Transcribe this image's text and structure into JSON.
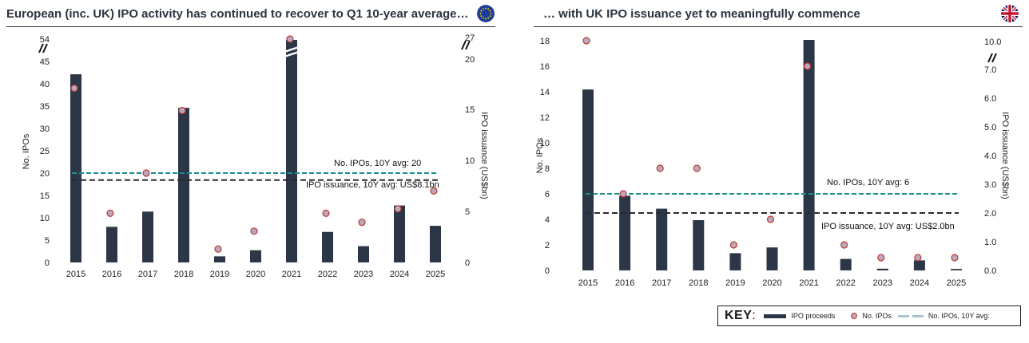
{
  "colors": {
    "bar": "#2b3647",
    "dot_fill": "#b7a9bf",
    "dot_stroke": "#c0392b",
    "ipo_avg_line": "#1a8f8f",
    "issuance_avg_line": "#2b2b2b",
    "title": "#2b3440"
  },
  "left_panel": {
    "title": "European (inc. UK) IPO activity has continued to recover to Q1 10-year average…",
    "flag_icon": "eu-flag-icon"
  },
  "right_panel": {
    "title": "… with UK IPO issuance yet to meaningfully commence",
    "flag_icon": "uk-flag-icon"
  },
  "key": {
    "title": "KEY",
    "colon": ":",
    "items": [
      "IPO proceeds",
      "No. IPOs",
      "No. IPOs, 10Y avg:"
    ]
  },
  "chart_data": [
    {
      "type": "bar",
      "title": "European (inc. UK) IPO activity has continued to recover to Q1 10-year average…",
      "categories": [
        "2015",
        "2016",
        "2017",
        "2018",
        "2019",
        "2020",
        "2021",
        "2022",
        "2023",
        "2024",
        "2025"
      ],
      "ylabel": "No. IPOs",
      "y2label": "IPO issuance (US$bn)",
      "left_ticks": [
        "0",
        "5",
        "10",
        "15",
        "20",
        "25",
        "30",
        "35",
        "40",
        "45",
        "54"
      ],
      "right_ticks": [
        "0",
        "5",
        "10",
        "15",
        "20",
        "27"
      ],
      "series": [
        {
          "name": "IPO proceeds",
          "axis": "right",
          "kind": "bar",
          "values": [
            18.5,
            3.5,
            5.0,
            15.2,
            0.6,
            1.2,
            27,
            3.0,
            1.6,
            5.6,
            3.6
          ]
        },
        {
          "name": "No. IPOs",
          "axis": "left",
          "kind": "dot",
          "values": [
            39,
            11,
            20,
            34,
            3,
            7,
            54,
            11,
            9,
            12,
            16
          ]
        }
      ],
      "avg_ipos": 20,
      "avg_issuance": 8.1,
      "annotations": [
        "No. IPOs, 10Y avg: 20",
        "IPO issuance, 10Y avg: US$8.1bn"
      ]
    },
    {
      "type": "bar",
      "title": "… with UK IPO issuance yet to meaningfully commence",
      "categories": [
        "2015",
        "2016",
        "2017",
        "2018",
        "2019",
        "2020",
        "2021",
        "2022",
        "2023",
        "2024",
        "2025"
      ],
      "ylabel": "No. IPOs",
      "y2label": "IPO issuance (US$bn)",
      "left_ticks": [
        "0",
        "2",
        "4",
        "6",
        "8",
        "10",
        "12",
        "14",
        "16",
        "18"
      ],
      "right_ticks": [
        "0.0",
        "1.0",
        "2.0",
        "3.0",
        "4.0",
        "5.0",
        "6.0",
        "7.0",
        "10.0"
      ],
      "series": [
        {
          "name": "IPO proceeds",
          "axis": "right",
          "kind": "bar",
          "values": [
            6.3,
            2.6,
            2.15,
            1.75,
            0.6,
            0.8,
            10.0,
            0.4,
            0.06,
            0.35,
            0.05
          ]
        },
        {
          "name": "No. IPOs",
          "axis": "left",
          "kind": "dot",
          "values": [
            18,
            6,
            8,
            8,
            2,
            4,
            16,
            2,
            1,
            1,
            1
          ]
        }
      ],
      "avg_ipos": 6,
      "avg_issuance": 2.0,
      "annotations": [
        "No. IPOs, 10Y avg: 6",
        "IPO issuance, 10Y avg: US$2.0bn"
      ]
    }
  ]
}
